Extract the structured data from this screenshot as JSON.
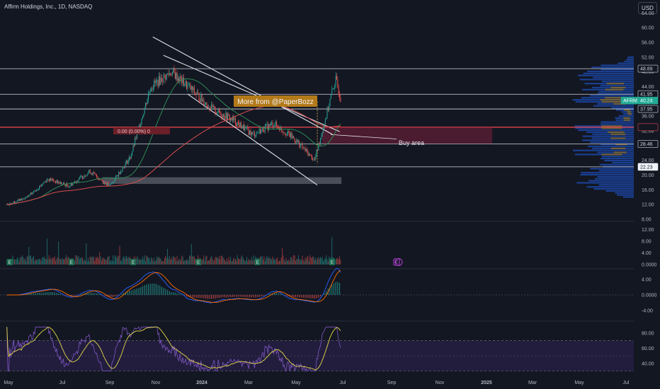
{
  "header": {
    "title": "Affirm Holdings, Inc., 1D, NASDAQ",
    "currency": "USD"
  },
  "annotations": {
    "promo": "More from @PaperBozz",
    "buy_area": "Buy area",
    "hline_label": "0.00 (0.00%) 0"
  },
  "colors": {
    "background": "#131722",
    "up": "#26a69a",
    "down": "#ef5350",
    "ma_green": "#2d8a55",
    "ma_red": "#d84d4d",
    "hline_red": "#e0434b",
    "promo_bg": "#b37a1a",
    "rsi_band": "#2a2148",
    "volume_profile": "#1c47a6"
  },
  "chart_data": [
    {
      "type": "candlestick",
      "title": "Affirm Holdings, Inc., 1D, NASDAQ",
      "x": [
        "May",
        "Jul",
        "Sep",
        "Nov",
        "2024",
        "Mar",
        "May",
        "Jul",
        "Sep",
        "Nov",
        "2025",
        "Mar",
        "May",
        "Jul"
      ],
      "yticks": [
        "64.00",
        "60.00",
        "56.00",
        "52.00",
        "48.00",
        "44.00",
        "40.00",
        "36.00",
        "32.00",
        "28.00",
        "24.00",
        "20.00",
        "16.00",
        "12.00",
        "8.00"
      ],
      "ylim": [
        8,
        66
      ],
      "price_labels": [
        {
          "label": "48.89",
          "value": 48.89
        },
        {
          "label": "41.95",
          "value": 41.95
        },
        {
          "label": "AFRM",
          "value": 40.24
        },
        {
          "label": "40.24",
          "value": 40.24
        },
        {
          "label": "37.95",
          "value": 37.95
        },
        {
          "label": "28.46",
          "value": 28.46
        },
        {
          "label": "22.23",
          "value": 22.23
        }
      ],
      "horizontal_levels": [
        48.89,
        41.95,
        37.95,
        28.46,
        22.23
      ],
      "red_level": 33.0,
      "close_series": [
        {
          "t": "2023-05-01",
          "v": 12
        },
        {
          "t": "2023-06-01",
          "v": 14
        },
        {
          "t": "2023-07-01",
          "v": 19
        },
        {
          "t": "2023-08-01",
          "v": 17
        },
        {
          "t": "2023-09-01",
          "v": 21
        },
        {
          "t": "2023-10-01",
          "v": 17
        },
        {
          "t": "2023-11-01",
          "v": 25
        },
        {
          "t": "2023-12-01",
          "v": 44
        },
        {
          "t": "2024-01-01",
          "v": 48
        },
        {
          "t": "2024-02-01",
          "v": 43
        },
        {
          "t": "2024-03-01",
          "v": 38
        },
        {
          "t": "2024-04-01",
          "v": 35
        },
        {
          "t": "2024-05-01",
          "v": 31
        },
        {
          "t": "2024-06-01",
          "v": 34
        },
        {
          "t": "2024-07-01",
          "v": 30
        },
        {
          "t": "2024-08-01",
          "v": 24
        },
        {
          "t": "2024-09-01",
          "v": 46
        },
        {
          "t": "2024-09-10",
          "v": 40.24
        }
      ]
    },
    {
      "type": "bar",
      "title": "Volume",
      "yticks": [
        "12.00",
        "8.00",
        "4.00",
        "0.0000"
      ],
      "ylim": [
        0,
        14
      ]
    },
    {
      "type": "line",
      "title": "MACD",
      "yticks": [
        "4.00",
        "0.0000",
        "-4.00"
      ],
      "ylim": [
        -6,
        6
      ]
    },
    {
      "type": "line",
      "title": "RSI",
      "yticks": [
        "80.00",
        "60.00",
        "40.00"
      ],
      "ylim": [
        25,
        92
      ],
      "bands": [
        70,
        30
      ]
    }
  ]
}
